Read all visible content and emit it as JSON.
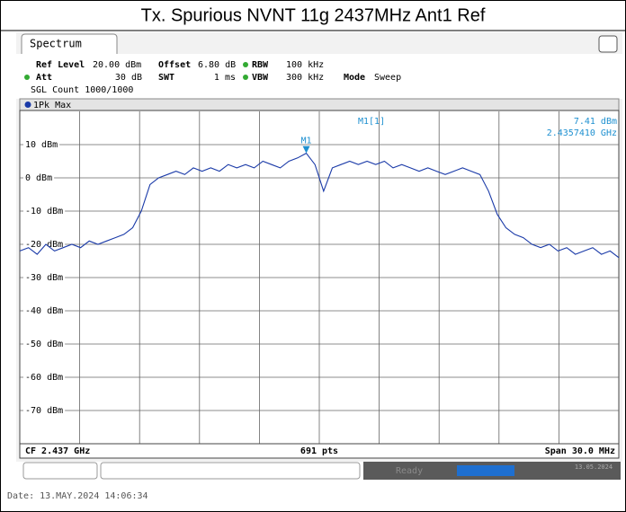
{
  "screen": {
    "title": "Tx. Spurious NVNT 11g 2437MHz Ant1 Ref",
    "tab": "Spectrum",
    "settings": {
      "ref_level_label": "Ref Level",
      "ref_level": "20.00 dBm",
      "offset_label": "Offset",
      "offset": "6.80 dB",
      "rbw_label": "RBW",
      "rbw": "100 kHz",
      "att_label": "Att",
      "att": "30 dB",
      "swt_label": "SWT",
      "swt": "1 ms",
      "vbw_label": "VBW",
      "vbw": "300 kHz",
      "mode_label": "Mode",
      "mode": "Sweep",
      "count": "SGL Count 1000/1000"
    },
    "trace_label": "1Pk Max",
    "footer": {
      "center_freq": "CF 2.437 GHz",
      "points": "691 pts",
      "span": "Span 30.0 MHz"
    },
    "status": {
      "state": "Ready",
      "date": "13.05.2024"
    },
    "timestamp": "Date: 13.MAY.2024  14:06:34"
  },
  "chart_data": {
    "type": "line",
    "series": [
      {
        "name": "1Pk Max",
        "color": "#1a3aa8",
        "values": [
          -22,
          -21,
          -23,
          -20,
          -22,
          -21,
          -20,
          -21,
          -19,
          -20,
          -19,
          -18,
          -17,
          -15,
          -10,
          -2,
          0,
          1,
          2,
          1,
          3,
          2,
          3,
          2,
          4,
          3,
          4,
          3,
          5,
          4,
          3,
          5,
          6,
          7.41,
          4,
          -4,
          3,
          4,
          5,
          4,
          5,
          4,
          5,
          3,
          4,
          3,
          2,
          3,
          2,
          1,
          2,
          3,
          2,
          1,
          -4,
          -11,
          -15,
          -17,
          -18,
          -20,
          -21,
          -20,
          -22,
          -21,
          -23,
          -22,
          -21,
          -23,
          -22,
          -24
        ]
      }
    ],
    "ylim": [
      -80,
      20
    ],
    "yticks": [
      {
        "value": 10,
        "label": "10 dBm"
      },
      {
        "value": 0,
        "label": "0 dBm"
      },
      {
        "value": -10,
        "label": "-10 dBm"
      },
      {
        "value": -20,
        "label": "-20 dBm"
      },
      {
        "value": -30,
        "label": "-30 dBm"
      },
      {
        "value": -40,
        "label": "-40 dBm"
      },
      {
        "value": -50,
        "label": "-50 dBm"
      },
      {
        "value": -60,
        "label": "-60 dBm"
      },
      {
        "value": -70,
        "label": "-70 dBm"
      }
    ],
    "grid": true,
    "marker": {
      "name": "M1",
      "readout": "M1[1]",
      "level": "7.41 dBm",
      "frequency": "2.4357410 GHz"
    }
  }
}
